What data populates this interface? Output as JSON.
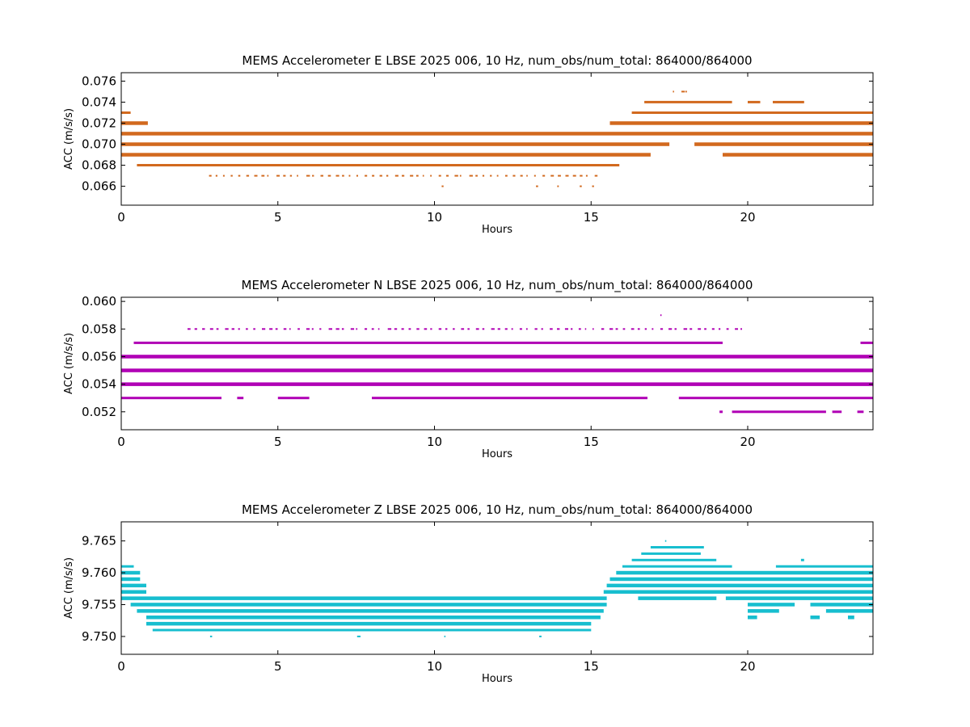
{
  "chart_data": [
    {
      "type": "scatter",
      "title": "MEMS Accelerometer E LBSE 2025 006, 10 Hz, num_obs/num_total: 864000/864000",
      "xlabel": "Hours",
      "ylabel": "ACC (m/s/s)",
      "xlim": [
        0,
        24
      ],
      "ylim": [
        0.0642,
        0.0768
      ],
      "xticks": [
        0,
        5,
        10,
        15,
        20
      ],
      "yticks": [
        "0.066",
        "0.068",
        "0.070",
        "0.072",
        "0.074",
        "0.076"
      ],
      "color": "#d2691e",
      "series": [
        {
          "y": 0.075,
          "segments": [
            [
              17.6,
              17.7
            ],
            [
              17.8,
              17.9
            ],
            [
              18.0,
              18.1
            ]
          ],
          "weight": "sparse"
        },
        {
          "y": 0.074,
          "segments": [
            [
              16.7,
              19.5
            ],
            [
              20.0,
              20.4
            ],
            [
              20.8,
              21.8
            ]
          ],
          "weight": "medium"
        },
        {
          "y": 0.073,
          "segments": [
            [
              0.0,
              0.3
            ],
            [
              16.3,
              24.0
            ]
          ],
          "weight": "medium"
        },
        {
          "y": 0.072,
          "segments": [
            [
              0.0,
              0.85
            ],
            [
              15.6,
              24.0
            ]
          ],
          "weight": "dense"
        },
        {
          "y": 0.071,
          "segments": [
            [
              0.0,
              24.0
            ]
          ],
          "weight": "dense"
        },
        {
          "y": 0.07,
          "segments": [
            [
              0.0,
              17.5
            ],
            [
              18.3,
              24.0
            ]
          ],
          "weight": "dense"
        },
        {
          "y": 0.069,
          "segments": [
            [
              0.0,
              16.9
            ],
            [
              19.2,
              24.0
            ]
          ],
          "weight": "dense"
        },
        {
          "y": 0.068,
          "segments": [
            [
              0.5,
              15.9
            ]
          ],
          "weight": "medium"
        },
        {
          "y": 0.067,
          "segments": [
            [
              2.8,
              15.1
            ]
          ],
          "weight": "sparse"
        },
        {
          "y": 0.066,
          "segments": [
            [
              10.2,
              10.3
            ],
            [
              13.2,
              13.3
            ],
            [
              13.9,
              14.0
            ],
            [
              14.6,
              14.7
            ],
            [
              15.0,
              15.1
            ]
          ],
          "weight": "sparse"
        }
      ]
    },
    {
      "type": "scatter",
      "title": "MEMS Accelerometer N LBSE 2025 006, 10 Hz, num_obs/num_total: 864000/864000",
      "xlabel": "Hours",
      "ylabel": "ACC (m/s/s)",
      "xlim": [
        0,
        24
      ],
      "ylim": [
        0.0507,
        0.0603
      ],
      "xticks": [
        0,
        5,
        10,
        15,
        20
      ],
      "yticks": [
        "0.052",
        "0.054",
        "0.056",
        "0.058",
        "0.060"
      ],
      "color": "#b000b5",
      "series": [
        {
          "y": 0.059,
          "segments": [
            [
              17.2,
              17.3
            ]
          ],
          "weight": "sparse"
        },
        {
          "y": 0.058,
          "segments": [
            [
              2.1,
              19.8
            ]
          ],
          "weight": "sparse"
        },
        {
          "y": 0.057,
          "segments": [
            [
              0.4,
              19.2
            ],
            [
              23.6,
              24.0
            ]
          ],
          "weight": "medium"
        },
        {
          "y": 0.056,
          "segments": [
            [
              0.0,
              24.0
            ]
          ],
          "weight": "dense"
        },
        {
          "y": 0.055,
          "segments": [
            [
              0.0,
              24.0
            ]
          ],
          "weight": "dense"
        },
        {
          "y": 0.054,
          "segments": [
            [
              0.0,
              24.0
            ]
          ],
          "weight": "dense"
        },
        {
          "y": 0.053,
          "segments": [
            [
              0.0,
              3.2
            ],
            [
              3.7,
              3.9
            ],
            [
              5.0,
              6.0
            ],
            [
              8.0,
              16.8
            ],
            [
              17.8,
              24.0
            ]
          ],
          "weight": "medium"
        },
        {
          "y": 0.052,
          "segments": [
            [
              19.1,
              19.2
            ],
            [
              19.5,
              22.5
            ],
            [
              22.7,
              23.0
            ],
            [
              23.5,
              23.7
            ]
          ],
          "weight": "medium"
        }
      ]
    },
    {
      "type": "scatter",
      "title": "MEMS Accelerometer Z LBSE 2025 006, 10 Hz, num_obs/num_total: 864000/864000",
      "xlabel": "Hours",
      "ylabel": "ACC (m/s/s)",
      "xlim": [
        0,
        24
      ],
      "ylim": [
        9.7472,
        9.768
      ],
      "xticks": [
        0,
        5,
        10,
        15,
        20
      ],
      "yticks": [
        "9.750",
        "9.755",
        "9.760",
        "9.765"
      ],
      "color": "#17becf",
      "series": [
        {
          "y": 9.765,
          "segments": [
            [
              17.3,
              17.5
            ]
          ],
          "weight": "sparse"
        },
        {
          "y": 9.764,
          "segments": [
            [
              16.9,
              18.6
            ]
          ],
          "weight": "medium"
        },
        {
          "y": 9.763,
          "segments": [
            [
              16.6,
              18.5
            ]
          ],
          "weight": "medium"
        },
        {
          "y": 9.762,
          "segments": [
            [
              16.3,
              19.0
            ],
            [
              21.7,
              21.8
            ]
          ],
          "weight": "medium"
        },
        {
          "y": 9.761,
          "segments": [
            [
              0.0,
              0.4
            ],
            [
              16.0,
              19.5
            ],
            [
              20.9,
              24.0
            ]
          ],
          "weight": "medium"
        },
        {
          "y": 9.76,
          "segments": [
            [
              0.0,
              0.6
            ],
            [
              15.8,
              24.0
            ]
          ],
          "weight": "dense"
        },
        {
          "y": 9.759,
          "segments": [
            [
              0.0,
              0.6
            ],
            [
              15.6,
              24.0
            ]
          ],
          "weight": "dense"
        },
        {
          "y": 9.758,
          "segments": [
            [
              0.0,
              0.8
            ],
            [
              15.5,
              24.0
            ]
          ],
          "weight": "dense"
        },
        {
          "y": 9.757,
          "segments": [
            [
              0.0,
              0.8
            ],
            [
              15.4,
              24.0
            ]
          ],
          "weight": "dense"
        },
        {
          "y": 9.756,
          "segments": [
            [
              0.0,
              15.5
            ],
            [
              16.5,
              19.0
            ],
            [
              19.3,
              24.0
            ]
          ],
          "weight": "dense"
        },
        {
          "y": 9.755,
          "segments": [
            [
              0.3,
              15.5
            ],
            [
              20.0,
              21.5
            ],
            [
              22.0,
              24.0
            ]
          ],
          "weight": "dense"
        },
        {
          "y": 9.754,
          "segments": [
            [
              0.5,
              15.4
            ],
            [
              20.0,
              21.0
            ],
            [
              22.5,
              24.0
            ]
          ],
          "weight": "dense"
        },
        {
          "y": 9.753,
          "segments": [
            [
              0.8,
              15.3
            ],
            [
              20.0,
              20.3
            ],
            [
              22.0,
              22.3
            ],
            [
              23.2,
              23.4
            ]
          ],
          "weight": "dense"
        },
        {
          "y": 9.752,
          "segments": [
            [
              0.8,
              15.0
            ]
          ],
          "weight": "dense"
        },
        {
          "y": 9.751,
          "segments": [
            [
              1.0,
              15.0
            ]
          ],
          "weight": "medium"
        },
        {
          "y": 9.75,
          "segments": [
            [
              2.8,
              2.9
            ],
            [
              7.4,
              7.6
            ],
            [
              10.3,
              10.4
            ],
            [
              13.3,
              13.4
            ]
          ],
          "weight": "sparse"
        }
      ]
    }
  ]
}
